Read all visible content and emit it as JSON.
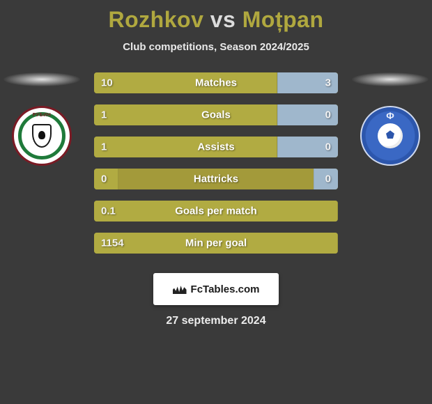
{
  "title": {
    "player1": "Rozhkov",
    "vs": "vs",
    "player2": "Moțpan"
  },
  "subtitle": "Club competitions, Season 2024/2025",
  "stats": [
    {
      "label": "Matches",
      "left_text": "10",
      "right_text": "3",
      "left_pct": 75,
      "right_pct": 25
    },
    {
      "label": "Goals",
      "left_text": "1",
      "right_text": "0",
      "left_pct": 75,
      "right_pct": 25
    },
    {
      "label": "Assists",
      "left_text": "1",
      "right_text": "0",
      "left_pct": 75,
      "right_pct": 25
    },
    {
      "label": "Hattricks",
      "left_text": "0",
      "right_text": "0",
      "left_pct": 10,
      "right_pct": 10
    },
    {
      "label": "Goals per match",
      "left_text": "0.1",
      "right_text": "",
      "left_pct": 100,
      "right_pct": 0
    },
    {
      "label": "Min per goal",
      "left_text": "1154",
      "right_text": "",
      "left_pct": 100,
      "right_pct": 0
    }
  ],
  "colors": {
    "left_fill": "#b1ab42",
    "right_fill": "#9fb7cc",
    "bar_bg": "#a39a3a",
    "page_bg": "#3a3a3a",
    "accent": "#b0a83f"
  },
  "brand": "FcTables.com",
  "date": "27 september 2024",
  "crest_left_text": "РУБИН"
}
